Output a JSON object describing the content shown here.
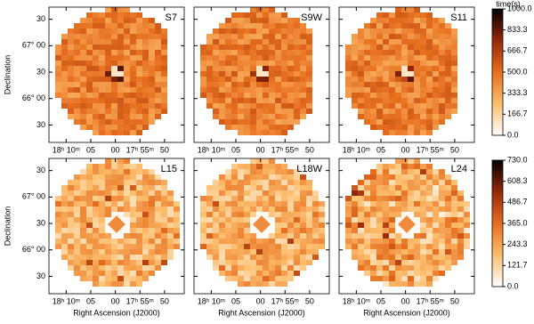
{
  "chart_data": [
    {
      "type": "heatmap",
      "panels": [
        {
          "name": "S7",
          "color": "#2e8b2e"
        },
        {
          "name": "S9W",
          "color": "#2e8b2e"
        },
        {
          "name": "S11",
          "color": "#2e8b2e"
        }
      ],
      "ylabel": "Declination",
      "xlim": [
        1093.5,
        1066
      ],
      "xticks": [
        {
          "value": 1090,
          "label": "18ʰ 10ᵐ"
        },
        {
          "value": 1085,
          "label": "05"
        },
        {
          "value": 1080,
          "label": "00"
        },
        {
          "value": 1075,
          "label": "17ʰ 55ᵐ"
        },
        {
          "value": 1070,
          "label": "50"
        }
      ],
      "ylim": [
        65.17,
        67.73
      ],
      "yticks": [
        {
          "value": 67.5,
          "label": "30"
        },
        {
          "value": 67,
          "label": "67° 00"
        },
        {
          "value": 66.5,
          "label": "30"
        },
        {
          "value": 66,
          "label": "66° 00"
        },
        {
          "value": 65.5,
          "label": "30"
        }
      ],
      "colorbar": {
        "title": "time(s)",
        "lim": [
          0,
          1000
        ],
        "ticks": [
          {
            "value": 0,
            "label": "0.0"
          },
          166.7,
          333.3,
          {
            "value": 500,
            "label": "500.0"
          },
          666.7,
          833.3,
          {
            "value": 1000,
            "label": "1000.0"
          }
        ]
      }
    },
    {
      "type": "heatmap",
      "panels": [
        {
          "name": "L15",
          "color": "#9b1b1b"
        },
        {
          "name": "L18W",
          "color": "#9b1b1b"
        },
        {
          "name": "L24",
          "color": "#9b1b1b"
        }
      ],
      "ylabel": "Declination",
      "xlabel": "Right Ascension (J2000)",
      "xlim": [
        1093.5,
        1066
      ],
      "xticks": [
        {
          "value": 1090,
          "label": "18ʰ 10ᵐ"
        },
        {
          "value": 1085,
          "label": "05"
        },
        {
          "value": 1080,
          "label": "00"
        },
        {
          "value": 1075,
          "label": "17ʰ 55ᵐ"
        },
        {
          "value": 1070,
          "label": "50"
        }
      ],
      "ylim": [
        65.17,
        67.73
      ],
      "yticks": [
        {
          "value": 67.5,
          "label": "30"
        },
        {
          "value": 67,
          "label": "67° 00"
        },
        {
          "value": 66.5,
          "label": "30"
        },
        {
          "value": 66,
          "label": "66° 00"
        },
        {
          "value": 65.5,
          "label": "30"
        }
      ],
      "colorbar": {
        "lim": [
          0,
          730
        ],
        "ticks": [
          {
            "value": 0,
            "label": "0.0"
          },
          121.7,
          243.3,
          {
            "value": 365,
            "label": "365.0"
          },
          486.7,
          608.3,
          {
            "value": 730,
            "label": "730.0"
          }
        ]
      }
    }
  ]
}
